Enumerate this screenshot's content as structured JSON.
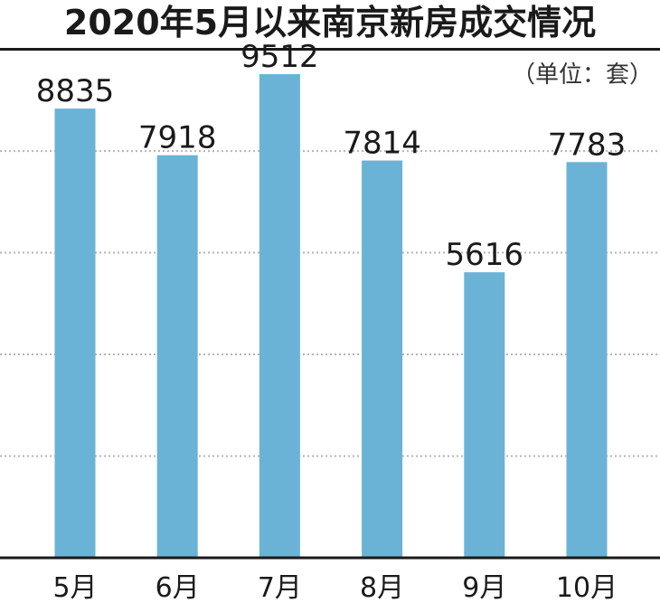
{
  "chart_data": {
    "type": "bar",
    "title": "2020年5月以来南京新房成交情况",
    "unit": "（单位：套）",
    "categories": [
      "5月",
      "6月",
      "7月",
      "8月",
      "9月",
      "10月"
    ],
    "values": [
      8835,
      7918,
      9512,
      7814,
      5616,
      7783
    ],
    "ylim": [
      0,
      10000
    ],
    "grid": true,
    "bar_color": "#6ab3d6",
    "grid_color": "#b5b5b5",
    "axis_color": "#1a1a1a",
    "text_color": "#1a1a1a"
  }
}
